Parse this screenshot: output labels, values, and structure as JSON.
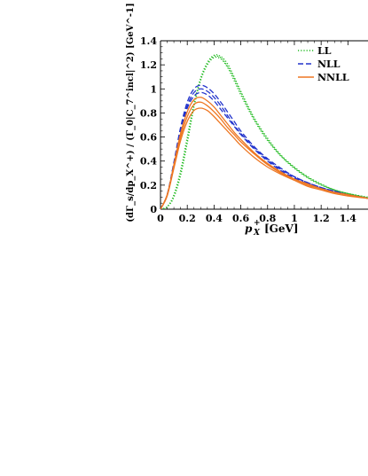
{
  "chart_data": {
    "type": "line",
    "xlabel": "p_X^+ [GeV]",
    "xlabel_main": "p",
    "xlabel_sub": "X",
    "xlabel_sup": "+",
    "xlabel_unit": "[GeV]",
    "ylabel": "(dΓ_s/dp_X^+) / (Γ_0|C_7^incl|^2)  [GeV^-1]",
    "xlim": [
      0,
      1.55
    ],
    "ylim": [
      0,
      1.4
    ],
    "x_ticks": [
      0,
      0.2,
      0.4,
      0.6,
      0.8,
      1,
      1.2,
      1.4
    ],
    "y_ticks": [
      0,
      0.2,
      0.4,
      0.6,
      0.8,
      1,
      1.2,
      1.4
    ],
    "x_tick_labels": [
      "0",
      "0.2",
      "0.4",
      "0.6",
      "0.8",
      "1",
      "1.2",
      "1.4"
    ],
    "y_tick_labels": [
      "0",
      "0.2",
      "0.4",
      "0.6",
      "0.8",
      "1",
      "1.2",
      "1.4"
    ],
    "legend_position": "top-right",
    "x": [
      0,
      0.05,
      0.1,
      0.15,
      0.2,
      0.25,
      0.3,
      0.35,
      0.4,
      0.45,
      0.5,
      0.55,
      0.6,
      0.7,
      0.8,
      0.9,
      1.0,
      1.1,
      1.2,
      1.3,
      1.4,
      1.55
    ],
    "series": [
      {
        "name": "LL",
        "color": "#22bb22",
        "style": "dotted",
        "curves": [
          [
            0,
            0.02,
            0.1,
            0.28,
            0.55,
            0.85,
            1.07,
            1.2,
            1.26,
            1.25,
            1.18,
            1.07,
            0.95,
            0.74,
            0.57,
            0.44,
            0.34,
            0.26,
            0.2,
            0.16,
            0.13,
            0.09
          ],
          [
            0,
            0.02,
            0.12,
            0.32,
            0.6,
            0.88,
            1.09,
            1.22,
            1.28,
            1.27,
            1.21,
            1.1,
            0.98,
            0.76,
            0.59,
            0.45,
            0.35,
            0.27,
            0.21,
            0.16,
            0.13,
            0.1
          ],
          [
            0,
            0.02,
            0.11,
            0.3,
            0.57,
            0.86,
            1.08,
            1.21,
            1.27,
            1.26,
            1.19,
            1.09,
            0.97,
            0.75,
            0.58,
            0.445,
            0.345,
            0.265,
            0.205,
            0.16,
            0.13,
            0.095
          ]
        ]
      },
      {
        "name": "NLL",
        "color": "#2233cc",
        "style": "dashed",
        "curves": [
          [
            0,
            0.12,
            0.38,
            0.66,
            0.86,
            0.97,
            1.0,
            0.98,
            0.93,
            0.86,
            0.78,
            0.7,
            0.63,
            0.51,
            0.41,
            0.33,
            0.27,
            0.22,
            0.18,
            0.15,
            0.12,
            0.09
          ],
          [
            0,
            0.12,
            0.37,
            0.64,
            0.84,
            0.94,
            0.97,
            0.95,
            0.9,
            0.83,
            0.76,
            0.69,
            0.62,
            0.5,
            0.4,
            0.32,
            0.26,
            0.21,
            0.17,
            0.14,
            0.12,
            0.09
          ],
          [
            0,
            0.12,
            0.39,
            0.68,
            0.89,
            1.0,
            1.03,
            1.01,
            0.96,
            0.89,
            0.81,
            0.73,
            0.65,
            0.52,
            0.42,
            0.34,
            0.27,
            0.22,
            0.18,
            0.15,
            0.12,
            0.09
          ]
        ]
      },
      {
        "name": "NNLL",
        "color": "#ee7722",
        "style": "solid",
        "curves": [
          [
            0,
            0.12,
            0.36,
            0.6,
            0.77,
            0.87,
            0.89,
            0.86,
            0.81,
            0.75,
            0.68,
            0.62,
            0.56,
            0.46,
            0.37,
            0.3,
            0.25,
            0.2,
            0.17,
            0.14,
            0.12,
            0.09
          ],
          [
            0,
            0.11,
            0.34,
            0.57,
            0.73,
            0.82,
            0.84,
            0.82,
            0.77,
            0.71,
            0.65,
            0.59,
            0.53,
            0.43,
            0.35,
            0.29,
            0.24,
            0.19,
            0.16,
            0.13,
            0.11,
            0.09
          ],
          [
            0,
            0.12,
            0.37,
            0.63,
            0.81,
            0.91,
            0.93,
            0.9,
            0.85,
            0.78,
            0.71,
            0.64,
            0.58,
            0.47,
            0.38,
            0.31,
            0.25,
            0.21,
            0.17,
            0.14,
            0.12,
            0.09
          ]
        ]
      }
    ]
  }
}
